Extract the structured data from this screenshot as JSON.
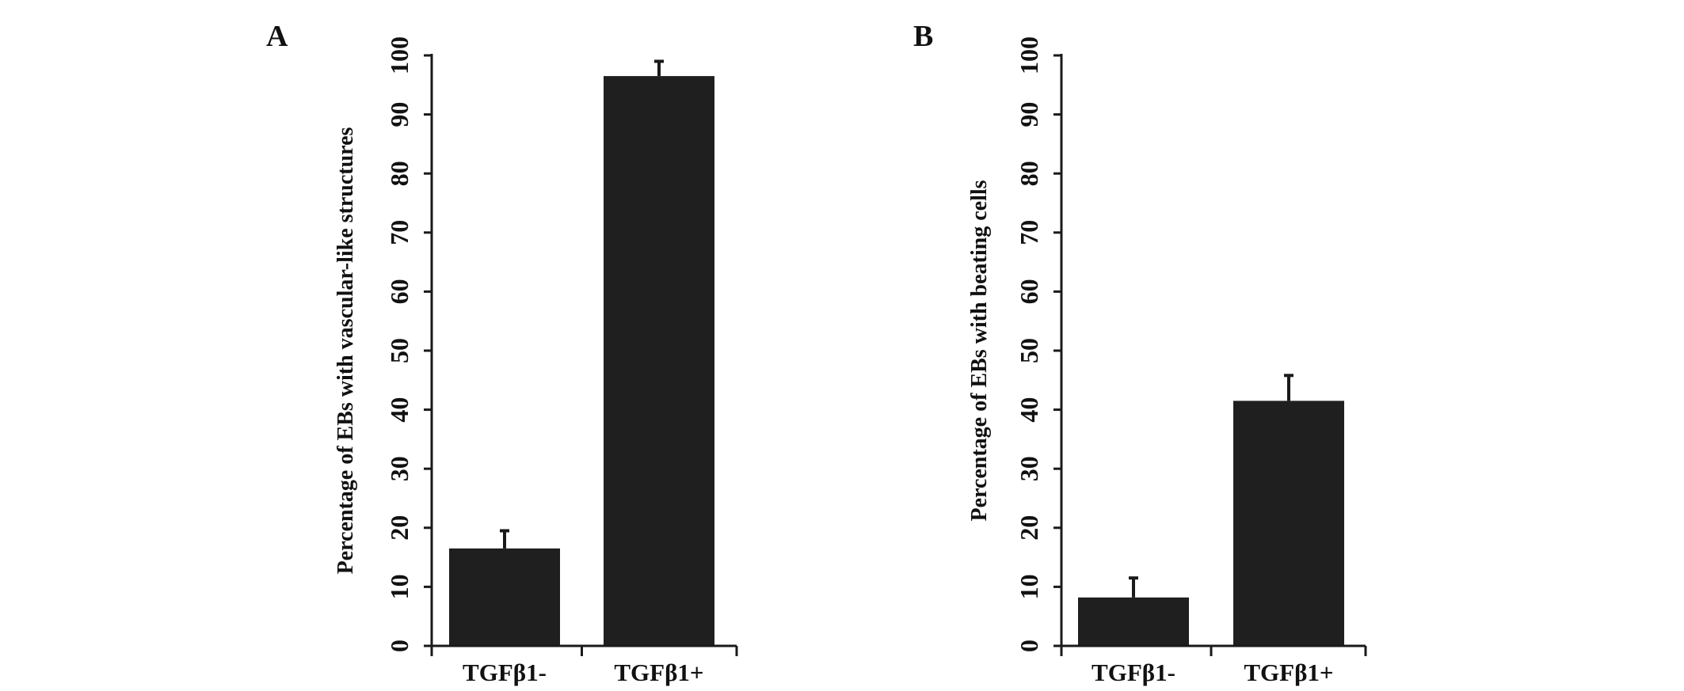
{
  "chart_data": [
    {
      "type": "bar",
      "panel": "A",
      "categories": [
        "TGFβ1-",
        "TGFβ1+"
      ],
      "values": [
        16.5,
        96.5
      ],
      "error": [
        3.0,
        2.5
      ],
      "bar_color": "#1f1f1f",
      "xlabel": "",
      "ylabel": "Percentage of EBs with vascular-like structures",
      "ylim": [
        0,
        100
      ],
      "yticks": [
        0,
        10,
        20,
        30,
        40,
        50,
        60,
        70,
        80,
        90,
        100
      ],
      "grid": false,
      "legend": "none"
    },
    {
      "type": "bar",
      "panel": "B",
      "categories": [
        "TGFβ1-",
        "TGFβ1+"
      ],
      "values": [
        8.2,
        41.5
      ],
      "error": [
        3.3,
        4.3
      ],
      "bar_color": "#1f1f1f",
      "xlabel": "",
      "ylabel": "Percentage of EBs with beating cells",
      "ylim": [
        0,
        100
      ],
      "yticks": [
        0,
        10,
        20,
        30,
        40,
        50,
        60,
        70,
        80,
        90,
        100
      ],
      "grid": false,
      "legend": "none"
    }
  ]
}
